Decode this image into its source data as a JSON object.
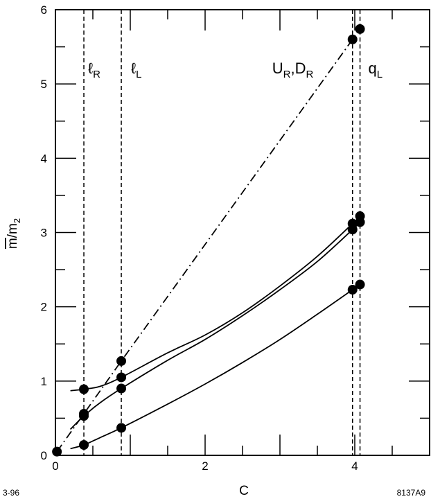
{
  "chart_data": {
    "type": "line",
    "xlabel": "C",
    "ylabel_base": "m",
    "ylabel_denominator": "m",
    "ylabel_denominator_sub": "2",
    "xlim": [
      0,
      5
    ],
    "ylim": [
      0,
      6
    ],
    "xticks": [
      0,
      2,
      4
    ],
    "yticks": [
      0,
      1,
      2,
      3,
      4,
      5,
      6
    ],
    "grid": false,
    "vertical_lines": [
      {
        "x": 0.38,
        "label": "ℓ",
        "sub": "R"
      },
      {
        "x": 0.88,
        "label": "ℓ",
        "sub": "L"
      },
      {
        "x": 3.97,
        "label": "U",
        "sub": "R",
        "label2": ",D",
        "sub2": "R"
      },
      {
        "x": 4.07,
        "label": "q",
        "sub": "L"
      }
    ],
    "series": [
      {
        "style": "solid",
        "curve": [
          [
            0.2,
            0.87
          ],
          [
            0.38,
            0.89
          ],
          [
            0.6,
            0.93
          ],
          [
            0.88,
            1.05
          ],
          [
            1.5,
            1.38
          ],
          [
            2.0,
            1.62
          ],
          [
            2.5,
            1.92
          ],
          [
            3.0,
            2.28
          ],
          [
            3.5,
            2.68
          ],
          [
            3.97,
            3.12
          ],
          [
            4.07,
            3.22
          ]
        ],
        "points": [
          [
            0.38,
            0.89
          ],
          [
            0.88,
            1.05
          ],
          [
            3.97,
            3.12
          ],
          [
            4.07,
            3.22
          ]
        ]
      },
      {
        "style": "solid",
        "curve": [
          [
            0.2,
            0.35
          ],
          [
            0.38,
            0.53
          ],
          [
            0.6,
            0.71
          ],
          [
            0.88,
            0.9
          ],
          [
            1.5,
            1.28
          ],
          [
            2.0,
            1.56
          ],
          [
            2.5,
            1.88
          ],
          [
            3.0,
            2.23
          ],
          [
            3.5,
            2.61
          ],
          [
            3.97,
            3.04
          ],
          [
            4.07,
            3.14
          ]
        ],
        "points": [
          [
            0.38,
            0.53
          ],
          [
            0.88,
            0.9
          ],
          [
            3.97,
            3.04
          ],
          [
            4.07,
            3.14
          ]
        ]
      },
      {
        "style": "solid",
        "curve": [
          [
            0.2,
            0.09
          ],
          [
            0.38,
            0.14
          ],
          [
            0.6,
            0.24
          ],
          [
            0.88,
            0.37
          ],
          [
            1.5,
            0.69
          ],
          [
            2.0,
            0.96
          ],
          [
            2.5,
            1.25
          ],
          [
            3.0,
            1.56
          ],
          [
            3.5,
            1.9
          ],
          [
            3.97,
            2.23
          ],
          [
            4.07,
            2.3
          ]
        ],
        "points": [
          [
            0.38,
            0.14
          ],
          [
            0.88,
            0.37
          ],
          [
            3.97,
            2.23
          ],
          [
            4.07,
            2.3
          ]
        ]
      },
      {
        "style": "dash-dot",
        "curve": [
          [
            0.02,
            0.05
          ],
          [
            0.38,
            0.56
          ],
          [
            0.88,
            1.27
          ],
          [
            3.97,
            5.6
          ],
          [
            4.07,
            5.74
          ]
        ],
        "points": [
          [
            0.02,
            0.05
          ],
          [
            0.38,
            0.56
          ],
          [
            0.88,
            1.27
          ],
          [
            3.97,
            5.6
          ],
          [
            4.07,
            5.74
          ]
        ]
      }
    ]
  },
  "footer": {
    "left": "3-96",
    "right": "8137A9"
  }
}
